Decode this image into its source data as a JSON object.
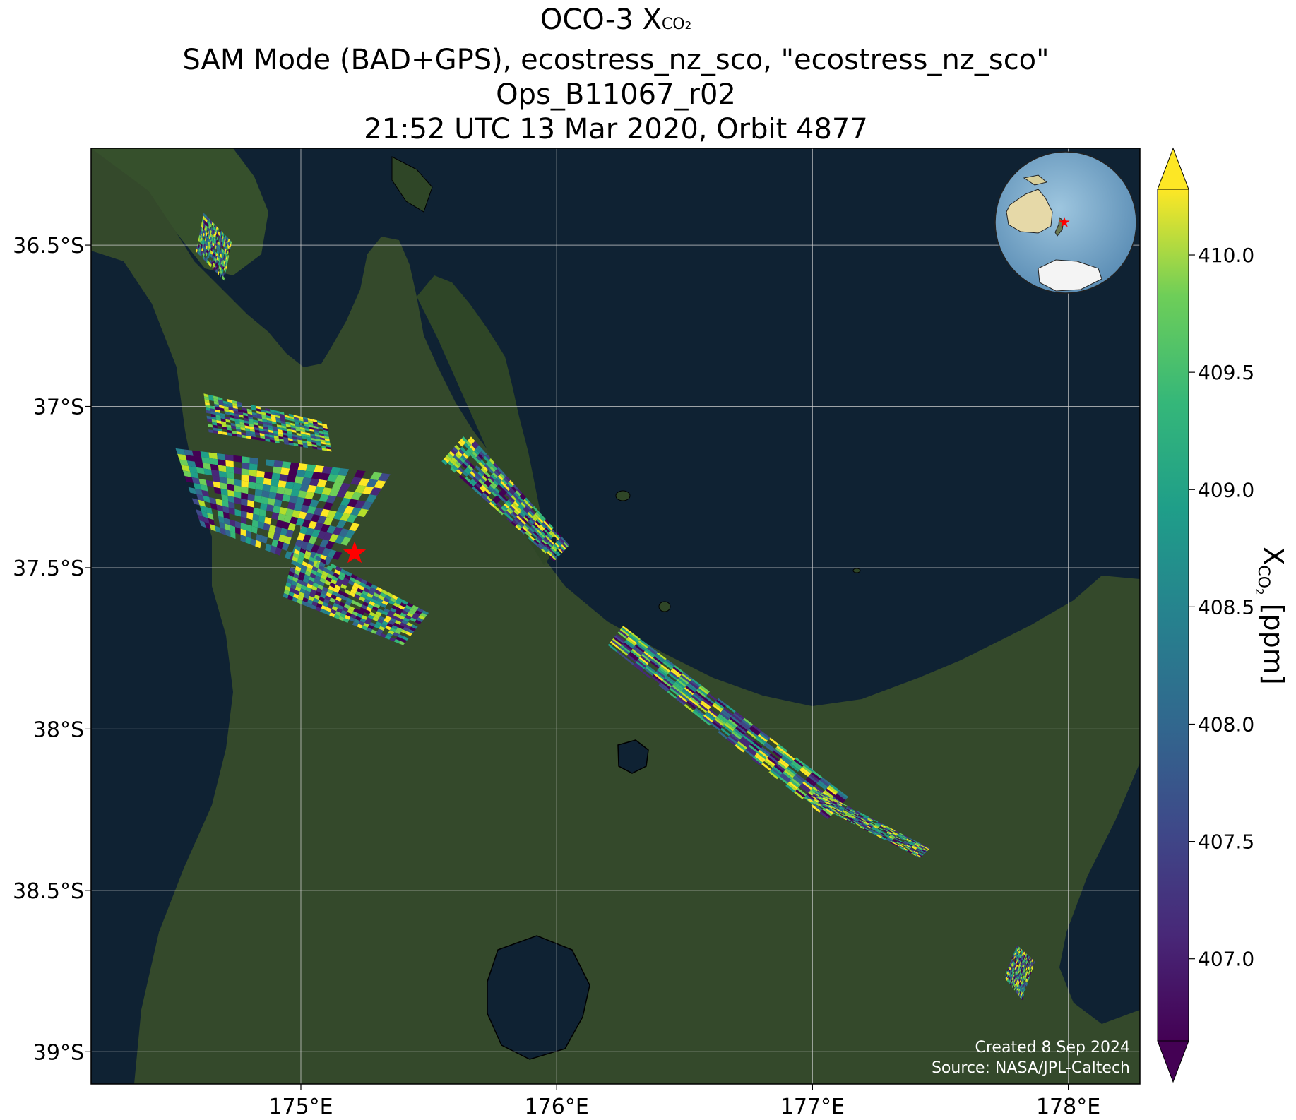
{
  "title": {
    "line1_prefix": "OCO-3 X",
    "line1_sub": "CO",
    "line1_subsub": "2",
    "line2": "SAM Mode (BAD+GPS), ecostress_nz_sco, \"ecostress_nz_sco\"",
    "line3": "Ops_B11067_r02",
    "line4": "21:52 UTC 13 Mar 2020, Orbit 4877"
  },
  "map": {
    "lon_range": [
      174.18,
      178.28
    ],
    "lat_range": [
      -39.1,
      -36.2
    ],
    "lon_ticks": [
      {
        "value": 175,
        "label": "175°E"
      },
      {
        "value": 176,
        "label": "176°E"
      },
      {
        "value": 177,
        "label": "177°E"
      },
      {
        "value": 178,
        "label": "178°E"
      }
    ],
    "lat_ticks": [
      {
        "value": -36.5,
        "label": "36.5°S"
      },
      {
        "value": -37,
        "label": "37°S"
      },
      {
        "value": -37.5,
        "label": "37.5°S"
      },
      {
        "value": -38,
        "label": "38°S"
      },
      {
        "value": -38.5,
        "label": "38.5°S"
      },
      {
        "value": -39,
        "label": "39°S"
      }
    ],
    "target_marker": {
      "lon": 175.21,
      "lat": -37.455,
      "color": "#ff0000"
    },
    "credit_line1": "Created 8 Sep 2024",
    "credit_line2": "Source: NASA/JPL-Caltech",
    "ocean_color": "#0f2233",
    "land_color": "#33482a",
    "grid": true
  },
  "colorbar": {
    "colormap": "viridis",
    "vmin": 406.65,
    "vmax": 410.28,
    "extend": "both",
    "ticks": [
      {
        "value": 407.0,
        "label": "407.0"
      },
      {
        "value": 407.5,
        "label": "407.5"
      },
      {
        "value": 408.0,
        "label": "408.0"
      },
      {
        "value": 408.5,
        "label": "408.5"
      },
      {
        "value": 409.0,
        "label": "409.0"
      },
      {
        "value": 409.5,
        "label": "409.5"
      },
      {
        "value": 410.0,
        "label": "410.0"
      }
    ],
    "label_prefix": "X",
    "label_sub": "CO",
    "label_subsub": "2",
    "label_suffix": " [ppm]"
  },
  "soundings": [
    {
      "name": "swath-northwest-small",
      "corners": [
        [
          174.62,
          -36.4
        ],
        [
          174.73,
          -36.49
        ],
        [
          174.7,
          -36.61
        ],
        [
          174.59,
          -36.52
        ]
      ]
    },
    {
      "name": "swath-main-block",
      "corners": [
        [
          174.73,
          -37.06
        ],
        [
          175.35,
          -37.21
        ],
        [
          175.37,
          -37.36
        ],
        [
          175.11,
          -37.52
        ],
        [
          174.61,
          -37.37
        ],
        [
          174.51,
          -37.13
        ]
      ]
    },
    {
      "name": "swath-main-tail",
      "corners": [
        [
          174.98,
          -37.43
        ],
        [
          175.5,
          -37.64
        ],
        [
          175.4,
          -37.74
        ],
        [
          174.93,
          -37.59
        ]
      ]
    },
    {
      "name": "swath-main-northeast",
      "corners": [
        [
          174.62,
          -36.96
        ],
        [
          175.1,
          -37.05
        ],
        [
          175.12,
          -37.14
        ],
        [
          174.64,
          -37.08
        ]
      ]
    },
    {
      "name": "swath-coast",
      "corners": [
        [
          175.65,
          -37.08
        ],
        [
          176.05,
          -37.43
        ],
        [
          175.99,
          -37.48
        ],
        [
          175.55,
          -37.17
        ]
      ]
    },
    {
      "name": "swath-east-diagonal",
      "corners": [
        [
          176.26,
          -37.68
        ],
        [
          177.14,
          -38.21
        ],
        [
          177.06,
          -38.28
        ],
        [
          176.2,
          -37.74
        ]
      ]
    },
    {
      "name": "swath-east-tail",
      "corners": [
        [
          177.02,
          -38.19
        ],
        [
          177.46,
          -38.37
        ],
        [
          177.42,
          -38.4
        ],
        [
          176.98,
          -38.22
        ]
      ]
    },
    {
      "name": "swath-southeast-small",
      "corners": [
        [
          177.8,
          -38.67
        ],
        [
          177.87,
          -38.72
        ],
        [
          177.82,
          -38.84
        ],
        [
          177.75,
          -38.77
        ]
      ]
    }
  ]
}
